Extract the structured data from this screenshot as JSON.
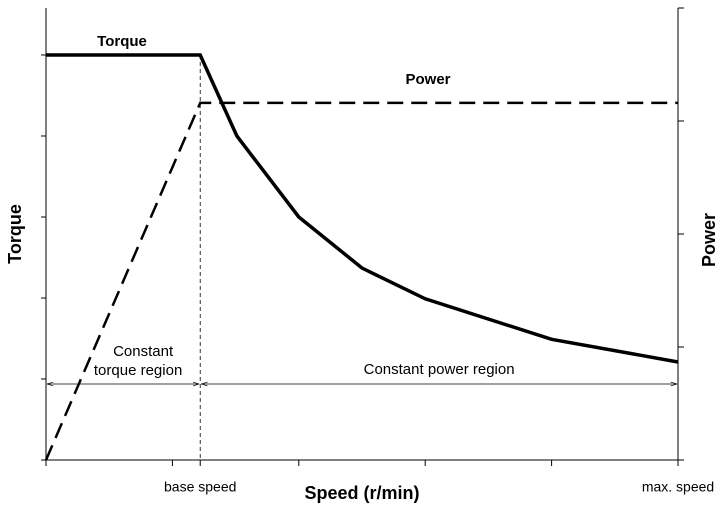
{
  "chart_data": {
    "type": "line",
    "xlabel": "Speed (r/min)",
    "ylabel": "Torque",
    "y2label": "Power",
    "xlim": [
      0,
      5
    ],
    "ylim": [
      0,
      5.58
    ],
    "y2lim": [
      0,
      4
    ],
    "xticks": [
      {
        "value": 0,
        "label": null
      },
      {
        "value": 1,
        "label": null
      },
      {
        "value": 1.22,
        "label": "base speed"
      },
      {
        "value": 2,
        "label": null
      },
      {
        "value": 3,
        "label": null
      },
      {
        "value": 4,
        "label": null
      },
      {
        "value": 5,
        "label": "max. speed"
      }
    ],
    "yticks": [
      {
        "value": 0,
        "label": null
      },
      {
        "value": 1,
        "label": null
      },
      {
        "value": 2,
        "label": null
      },
      {
        "value": 3,
        "label": null
      },
      {
        "value": 4,
        "label": null
      },
      {
        "value": 5,
        "label": null
      }
    ],
    "y2ticks": [
      {
        "value": 0,
        "label": null
      },
      {
        "value": 1,
        "label": null
      },
      {
        "value": 2,
        "label": null
      },
      {
        "value": 3,
        "label": null
      },
      {
        "value": 4,
        "label": null
      }
    ],
    "series": [
      {
        "name": "Torque",
        "color": "#000000",
        "dash": false,
        "x": [
          0,
          1.22,
          1.51,
          2.0,
          2.5,
          3.0,
          4.0,
          5.0
        ],
        "values": [
          5,
          5,
          4.0,
          3.0,
          2.37,
          1.99,
          1.49,
          1.21
        ]
      },
      {
        "name": "Power",
        "color": "#000000",
        "dash": true,
        "axis": "y2",
        "x": [
          0,
          1.22,
          5
        ],
        "values": [
          0,
          3.16,
          3.16
        ]
      }
    ],
    "annotations": [
      "Constant",
      "torque region",
      "Constant power region"
    ]
  }
}
